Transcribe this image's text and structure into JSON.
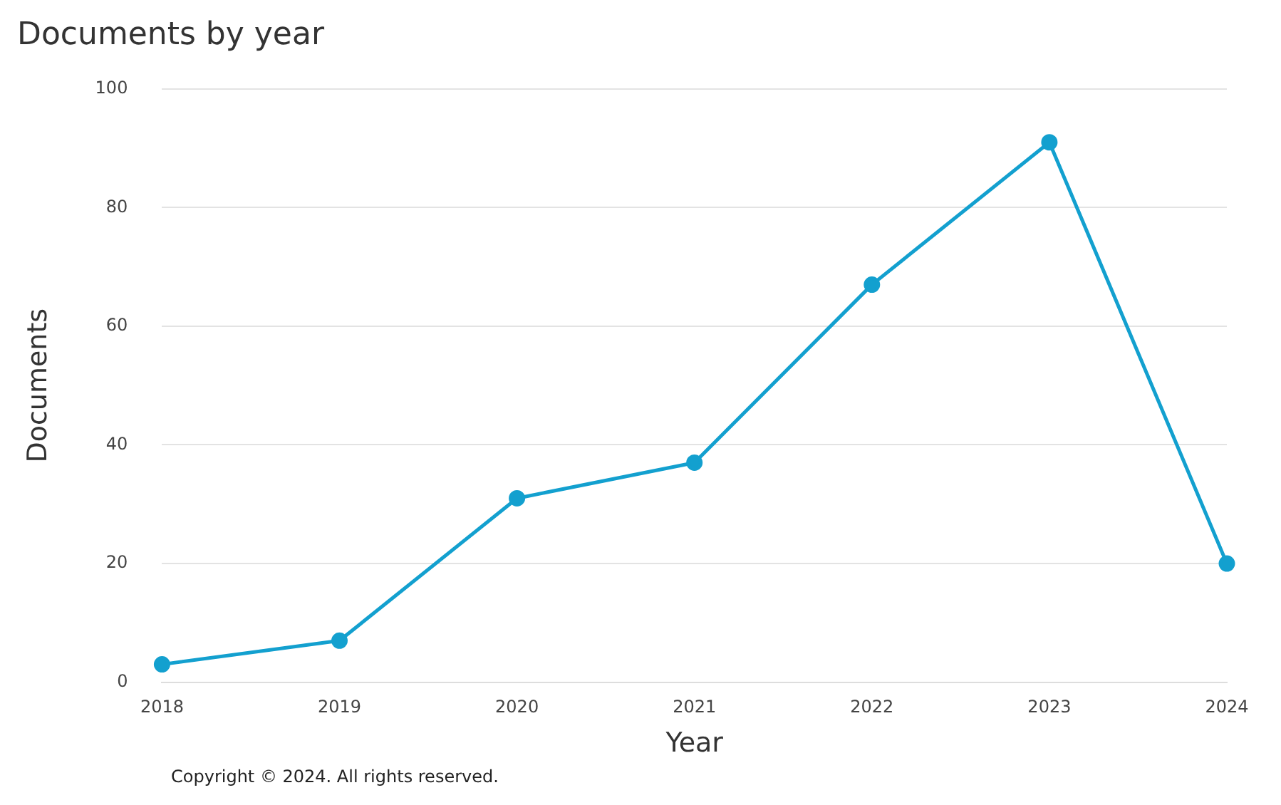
{
  "chart_data": {
    "type": "line",
    "title": "Documents by year",
    "xlabel": "Year",
    "ylabel": "Documents",
    "categories": [
      "2018",
      "2019",
      "2020",
      "2021",
      "2022",
      "2023",
      "2024"
    ],
    "series": [
      {
        "color": "#13a0cf",
        "values": [
          3,
          7,
          31,
          37,
          67,
          91,
          20
        ]
      }
    ],
    "ylim": [
      0,
      100
    ],
    "yticks": [
      0,
      20,
      40,
      60,
      80,
      100
    ],
    "grid": "y",
    "legend": false,
    "marker": "circle",
    "line_style": "solid",
    "annotations": [
      "Copyright © 2024. All rights reserved."
    ]
  }
}
